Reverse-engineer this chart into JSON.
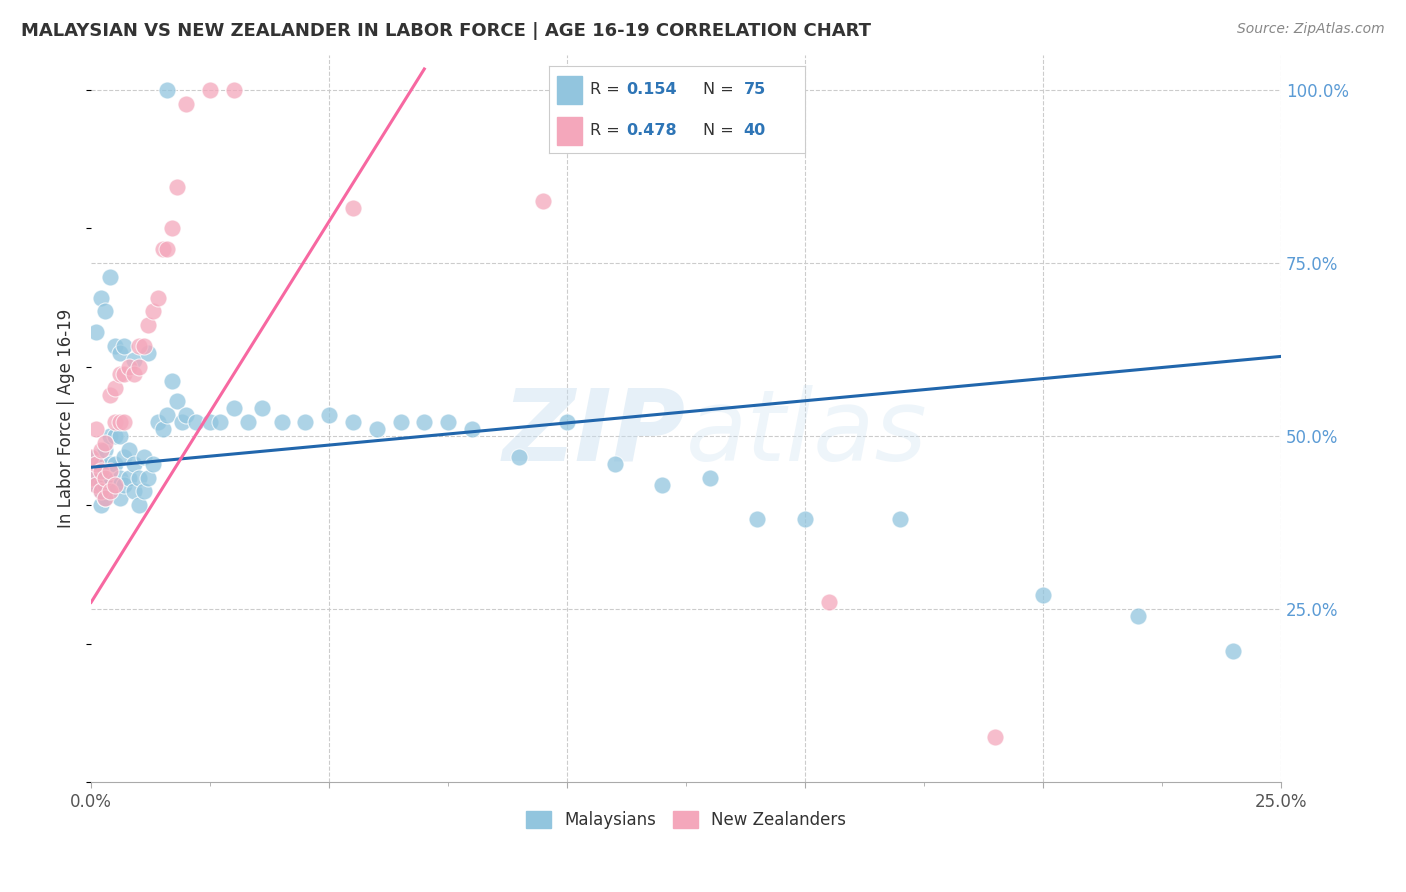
{
  "title": "MALAYSIAN VS NEW ZEALANDER IN LABOR FORCE | AGE 16-19 CORRELATION CHART",
  "source": "Source: ZipAtlas.com",
  "ylabel": "In Labor Force | Age 16-19",
  "x_min": 0.0,
  "x_max": 0.25,
  "y_min": 0.0,
  "y_max": 1.05,
  "watermark": "ZIPatlas",
  "blue_color": "#92c5de",
  "pink_color": "#f4a7bb",
  "blue_line_color": "#2166ac",
  "pink_line_color": "#f768a1",
  "background_color": "#ffffff",
  "grid_color": "#cccccc",
  "blue_line_x0": 0.0,
  "blue_line_y0": 0.455,
  "blue_line_x1": 0.25,
  "blue_line_y1": 0.615,
  "pink_line_x0": 0.0,
  "pink_line_y0": 0.26,
  "pink_line_x1": 0.07,
  "pink_line_y1": 1.03,
  "malaysian_x": [
    0.0,
    0.001,
    0.001,
    0.001,
    0.002,
    0.002,
    0.002,
    0.002,
    0.003,
    0.003,
    0.003,
    0.003,
    0.004,
    0.004,
    0.004,
    0.005,
    0.005,
    0.005,
    0.006,
    0.006,
    0.006,
    0.007,
    0.007,
    0.008,
    0.008,
    0.009,
    0.009,
    0.01,
    0.01,
    0.011,
    0.011,
    0.012,
    0.013,
    0.014,
    0.015,
    0.016,
    0.017,
    0.018,
    0.019,
    0.02,
    0.022,
    0.025,
    0.027,
    0.03,
    0.033,
    0.036,
    0.04,
    0.045,
    0.05,
    0.055,
    0.06,
    0.065,
    0.07,
    0.075,
    0.08,
    0.09,
    0.1,
    0.11,
    0.12,
    0.13,
    0.14,
    0.15,
    0.17,
    0.2,
    0.22,
    0.24,
    0.001,
    0.002,
    0.003,
    0.004,
    0.005,
    0.006,
    0.007,
    0.009,
    0.012,
    0.016
  ],
  "malaysian_y": [
    0.46,
    0.43,
    0.44,
    0.47,
    0.4,
    0.42,
    0.43,
    0.46,
    0.41,
    0.43,
    0.45,
    0.48,
    0.44,
    0.46,
    0.5,
    0.43,
    0.46,
    0.5,
    0.41,
    0.44,
    0.5,
    0.43,
    0.47,
    0.44,
    0.48,
    0.42,
    0.46,
    0.4,
    0.44,
    0.42,
    0.47,
    0.44,
    0.46,
    0.52,
    0.51,
    0.53,
    0.58,
    0.55,
    0.52,
    0.53,
    0.52,
    0.52,
    0.52,
    0.54,
    0.52,
    0.54,
    0.52,
    0.52,
    0.53,
    0.52,
    0.51,
    0.52,
    0.52,
    0.52,
    0.51,
    0.47,
    0.52,
    0.46,
    0.43,
    0.44,
    0.38,
    0.38,
    0.38,
    0.27,
    0.24,
    0.19,
    0.65,
    0.7,
    0.68,
    0.73,
    0.63,
    0.62,
    0.63,
    0.61,
    0.62,
    1.0
  ],
  "nz_x": [
    0.0,
    0.0,
    0.001,
    0.001,
    0.001,
    0.002,
    0.002,
    0.002,
    0.003,
    0.003,
    0.003,
    0.004,
    0.004,
    0.004,
    0.005,
    0.005,
    0.005,
    0.006,
    0.006,
    0.007,
    0.007,
    0.008,
    0.009,
    0.01,
    0.01,
    0.011,
    0.012,
    0.013,
    0.014,
    0.015,
    0.016,
    0.017,
    0.018,
    0.02,
    0.025,
    0.03,
    0.055,
    0.095,
    0.155,
    0.19
  ],
  "nz_y": [
    0.44,
    0.47,
    0.43,
    0.46,
    0.51,
    0.42,
    0.45,
    0.48,
    0.41,
    0.44,
    0.49,
    0.42,
    0.45,
    0.56,
    0.43,
    0.52,
    0.57,
    0.52,
    0.59,
    0.52,
    0.59,
    0.6,
    0.59,
    0.6,
    0.63,
    0.63,
    0.66,
    0.68,
    0.7,
    0.77,
    0.77,
    0.8,
    0.86,
    0.98,
    1.0,
    1.0,
    0.83,
    0.84,
    0.26,
    0.065
  ]
}
